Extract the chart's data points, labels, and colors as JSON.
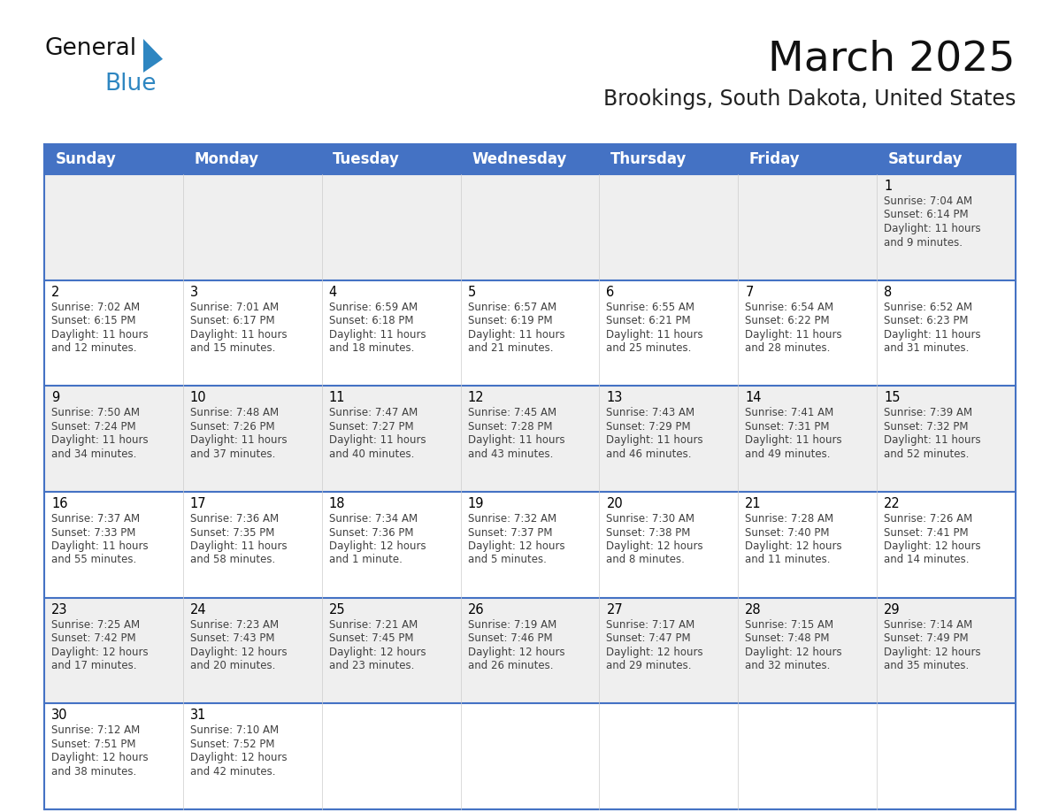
{
  "title": "March 2025",
  "subtitle": "Brookings, South Dakota, United States",
  "days_of_week": [
    "Sunday",
    "Monday",
    "Tuesday",
    "Wednesday",
    "Thursday",
    "Friday",
    "Saturday"
  ],
  "header_bg_color": "#4472C4",
  "header_text_color": "#FFFFFF",
  "odd_row_bg": "#EFEFEF",
  "even_row_bg": "#FFFFFF",
  "border_color": "#4472C4",
  "day_num_color": "#000000",
  "text_color": "#404040",
  "logo_blue": "#2E86C1",
  "logo_dark": "#111111",
  "calendar_data": [
    {
      "day": 1,
      "col": 6,
      "row": 0,
      "sunrise": "7:04 AM",
      "sunset": "6:14 PM",
      "daylight_h": "11 hours",
      "daylight_m": "and 9 minutes."
    },
    {
      "day": 2,
      "col": 0,
      "row": 1,
      "sunrise": "7:02 AM",
      "sunset": "6:15 PM",
      "daylight_h": "11 hours",
      "daylight_m": "and 12 minutes."
    },
    {
      "day": 3,
      "col": 1,
      "row": 1,
      "sunrise": "7:01 AM",
      "sunset": "6:17 PM",
      "daylight_h": "11 hours",
      "daylight_m": "and 15 minutes."
    },
    {
      "day": 4,
      "col": 2,
      "row": 1,
      "sunrise": "6:59 AM",
      "sunset": "6:18 PM",
      "daylight_h": "11 hours",
      "daylight_m": "and 18 minutes."
    },
    {
      "day": 5,
      "col": 3,
      "row": 1,
      "sunrise": "6:57 AM",
      "sunset": "6:19 PM",
      "daylight_h": "11 hours",
      "daylight_m": "and 21 minutes."
    },
    {
      "day": 6,
      "col": 4,
      "row": 1,
      "sunrise": "6:55 AM",
      "sunset": "6:21 PM",
      "daylight_h": "11 hours",
      "daylight_m": "and 25 minutes."
    },
    {
      "day": 7,
      "col": 5,
      "row": 1,
      "sunrise": "6:54 AM",
      "sunset": "6:22 PM",
      "daylight_h": "11 hours",
      "daylight_m": "and 28 minutes."
    },
    {
      "day": 8,
      "col": 6,
      "row": 1,
      "sunrise": "6:52 AM",
      "sunset": "6:23 PM",
      "daylight_h": "11 hours",
      "daylight_m": "and 31 minutes."
    },
    {
      "day": 9,
      "col": 0,
      "row": 2,
      "sunrise": "7:50 AM",
      "sunset": "7:24 PM",
      "daylight_h": "11 hours",
      "daylight_m": "and 34 minutes."
    },
    {
      "day": 10,
      "col": 1,
      "row": 2,
      "sunrise": "7:48 AM",
      "sunset": "7:26 PM",
      "daylight_h": "11 hours",
      "daylight_m": "and 37 minutes."
    },
    {
      "day": 11,
      "col": 2,
      "row": 2,
      "sunrise": "7:47 AM",
      "sunset": "7:27 PM",
      "daylight_h": "11 hours",
      "daylight_m": "and 40 minutes."
    },
    {
      "day": 12,
      "col": 3,
      "row": 2,
      "sunrise": "7:45 AM",
      "sunset": "7:28 PM",
      "daylight_h": "11 hours",
      "daylight_m": "and 43 minutes."
    },
    {
      "day": 13,
      "col": 4,
      "row": 2,
      "sunrise": "7:43 AM",
      "sunset": "7:29 PM",
      "daylight_h": "11 hours",
      "daylight_m": "and 46 minutes."
    },
    {
      "day": 14,
      "col": 5,
      "row": 2,
      "sunrise": "7:41 AM",
      "sunset": "7:31 PM",
      "daylight_h": "11 hours",
      "daylight_m": "and 49 minutes."
    },
    {
      "day": 15,
      "col": 6,
      "row": 2,
      "sunrise": "7:39 AM",
      "sunset": "7:32 PM",
      "daylight_h": "11 hours",
      "daylight_m": "and 52 minutes."
    },
    {
      "day": 16,
      "col": 0,
      "row": 3,
      "sunrise": "7:37 AM",
      "sunset": "7:33 PM",
      "daylight_h": "11 hours",
      "daylight_m": "and 55 minutes."
    },
    {
      "day": 17,
      "col": 1,
      "row": 3,
      "sunrise": "7:36 AM",
      "sunset": "7:35 PM",
      "daylight_h": "11 hours",
      "daylight_m": "and 58 minutes."
    },
    {
      "day": 18,
      "col": 2,
      "row": 3,
      "sunrise": "7:34 AM",
      "sunset": "7:36 PM",
      "daylight_h": "12 hours",
      "daylight_m": "and 1 minute."
    },
    {
      "day": 19,
      "col": 3,
      "row": 3,
      "sunrise": "7:32 AM",
      "sunset": "7:37 PM",
      "daylight_h": "12 hours",
      "daylight_m": "and 5 minutes."
    },
    {
      "day": 20,
      "col": 4,
      "row": 3,
      "sunrise": "7:30 AM",
      "sunset": "7:38 PM",
      "daylight_h": "12 hours",
      "daylight_m": "and 8 minutes."
    },
    {
      "day": 21,
      "col": 5,
      "row": 3,
      "sunrise": "7:28 AM",
      "sunset": "7:40 PM",
      "daylight_h": "12 hours",
      "daylight_m": "and 11 minutes."
    },
    {
      "day": 22,
      "col": 6,
      "row": 3,
      "sunrise": "7:26 AM",
      "sunset": "7:41 PM",
      "daylight_h": "12 hours",
      "daylight_m": "and 14 minutes."
    },
    {
      "day": 23,
      "col": 0,
      "row": 4,
      "sunrise": "7:25 AM",
      "sunset": "7:42 PM",
      "daylight_h": "12 hours",
      "daylight_m": "and 17 minutes."
    },
    {
      "day": 24,
      "col": 1,
      "row": 4,
      "sunrise": "7:23 AM",
      "sunset": "7:43 PM",
      "daylight_h": "12 hours",
      "daylight_m": "and 20 minutes."
    },
    {
      "day": 25,
      "col": 2,
      "row": 4,
      "sunrise": "7:21 AM",
      "sunset": "7:45 PM",
      "daylight_h": "12 hours",
      "daylight_m": "and 23 minutes."
    },
    {
      "day": 26,
      "col": 3,
      "row": 4,
      "sunrise": "7:19 AM",
      "sunset": "7:46 PM",
      "daylight_h": "12 hours",
      "daylight_m": "and 26 minutes."
    },
    {
      "day": 27,
      "col": 4,
      "row": 4,
      "sunrise": "7:17 AM",
      "sunset": "7:47 PM",
      "daylight_h": "12 hours",
      "daylight_m": "and 29 minutes."
    },
    {
      "day": 28,
      "col": 5,
      "row": 4,
      "sunrise": "7:15 AM",
      "sunset": "7:48 PM",
      "daylight_h": "12 hours",
      "daylight_m": "and 32 minutes."
    },
    {
      "day": 29,
      "col": 6,
      "row": 4,
      "sunrise": "7:14 AM",
      "sunset": "7:49 PM",
      "daylight_h": "12 hours",
      "daylight_m": "and 35 minutes."
    },
    {
      "day": 30,
      "col": 0,
      "row": 5,
      "sunrise": "7:12 AM",
      "sunset": "7:51 PM",
      "daylight_h": "12 hours",
      "daylight_m": "and 38 minutes."
    },
    {
      "day": 31,
      "col": 1,
      "row": 5,
      "sunrise": "7:10 AM",
      "sunset": "7:52 PM",
      "daylight_h": "12 hours",
      "daylight_m": "and 42 minutes."
    }
  ],
  "num_rows": 6,
  "cell_text_fontsize": 8.5,
  "day_num_fontsize": 10.5,
  "header_fontsize": 12
}
